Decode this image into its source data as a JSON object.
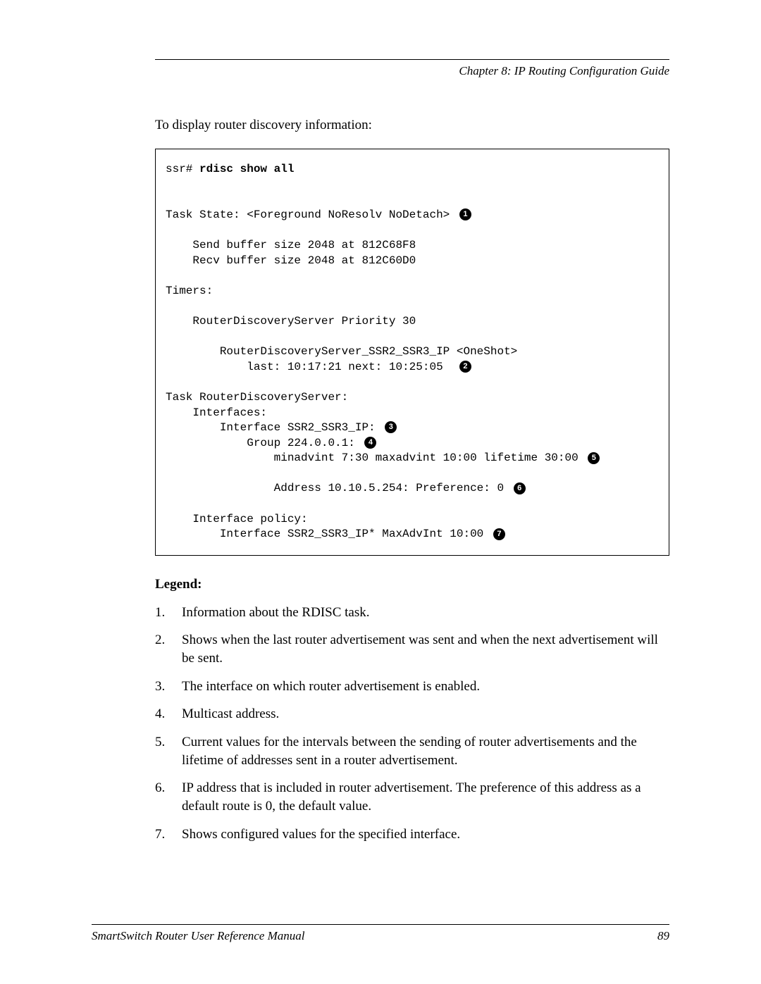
{
  "header": {
    "chapter": "Chapter 8: IP Routing Configuration Guide"
  },
  "intro": "To display router discovery information:",
  "terminal": {
    "prompt": "ssr# ",
    "command": "rdisc show all",
    "line_task_state": "Task State: <Foreground NoResolv NoDetach> ",
    "line_send_buf": "    Send buffer size 2048 at 812C68F8",
    "line_recv_buf": "    Recv buffer size 2048 at 812C60D0",
    "line_timers": "Timers:",
    "line_rds_priority": "    RouterDiscoveryServer Priority 30",
    "line_rds_oneshot": "        RouterDiscoveryServer_SSR2_SSR3_IP <OneShot>",
    "line_last_next": "            last: 10:17:21 next: 10:25:05  ",
    "line_task_rds": "Task RouterDiscoveryServer:",
    "line_interfaces": "    Interfaces:",
    "line_iface_ssr": "        Interface SSR2_SSR3_IP: ",
    "line_group": "            Group 224.0.0.1: ",
    "line_minadv": "                minadvint 7:30 maxadvint 10:00 lifetime 30:00 ",
    "line_address": "                Address 10.10.5.254: Preference: 0 ",
    "line_iface_policy": "    Interface policy:",
    "line_policy_iface": "        Interface SSR2_SSR3_IP* MaxAdvInt 10:00 ",
    "callouts": {
      "c1": "1",
      "c2": "2",
      "c3": "3",
      "c4": "4",
      "c5": "5",
      "c6": "6",
      "c7": "7"
    }
  },
  "legend": {
    "title": "Legend:",
    "items": [
      {
        "num": "1.",
        "text": "Information about the RDISC task."
      },
      {
        "num": "2.",
        "text": "Shows when the last router advertisement was sent and when the next advertisement will be sent."
      },
      {
        "num": "3.",
        "text": "The interface on which router advertisement is enabled."
      },
      {
        "num": "4.",
        "text": "Multicast address."
      },
      {
        "num": "5.",
        "text": "Current values for the intervals between the sending of router advertisements and the lifetime of addresses sent in a router advertisement."
      },
      {
        "num": "6.",
        "text": "IP address that is included in router advertisement. The preference of this address as a default route is 0, the default value."
      },
      {
        "num": "7.",
        "text": "Shows configured values for the specified interface."
      }
    ]
  },
  "footer": {
    "manual": "SmartSwitch Router User Reference Manual",
    "page": "89"
  }
}
